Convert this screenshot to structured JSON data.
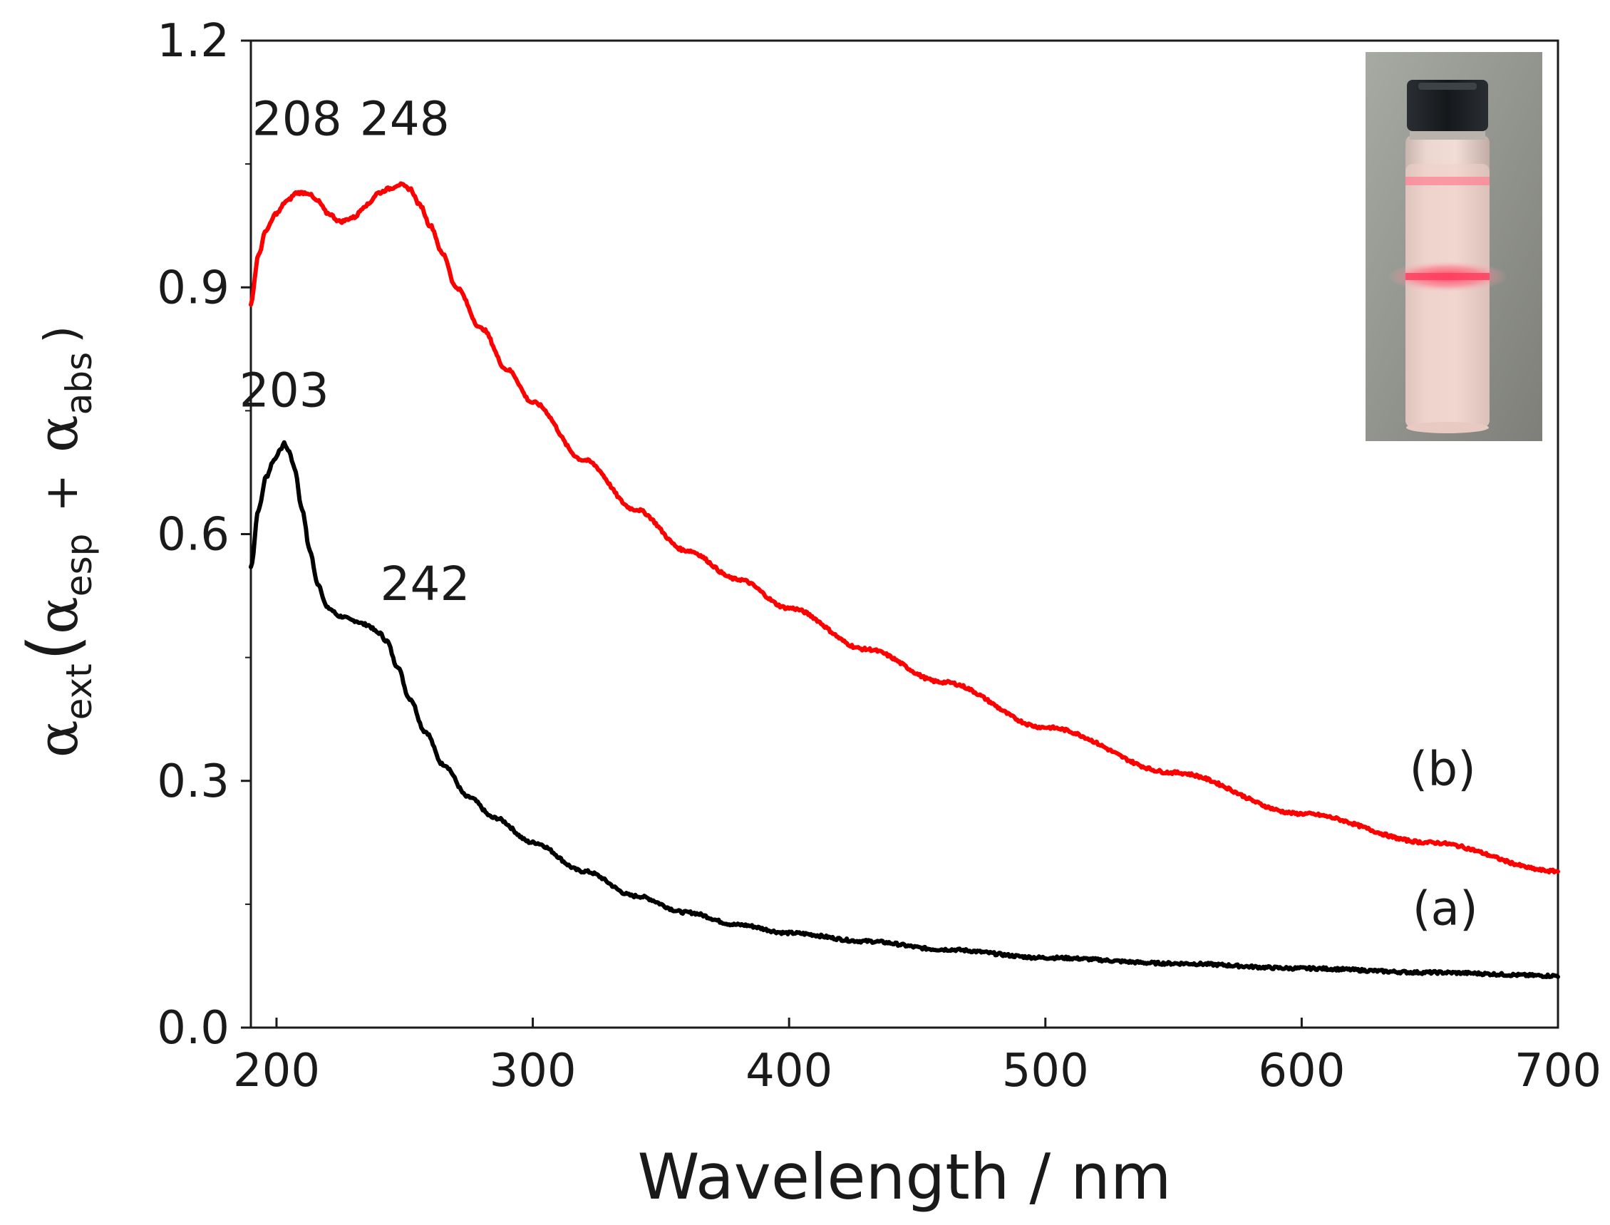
{
  "chart_data": {
    "type": "line",
    "title": "",
    "xlabel": "Wavelength / nm",
    "ylabel": {
      "symbol": "α",
      "ext_sub": "ext",
      "esp_sub": "esp",
      "abs_sub": "abs",
      "plus": "+",
      "open_paren": "(",
      "close_paren": ")"
    },
    "xlim": [
      190,
      700
    ],
    "ylim": [
      0.0,
      1.2
    ],
    "xticks": [
      200,
      300,
      400,
      500,
      600,
      700
    ],
    "xtick_labels": [
      "200",
      "300",
      "400",
      "500",
      "600",
      "700"
    ],
    "yticks": [
      0.0,
      0.3,
      0.6,
      0.9,
      1.2
    ],
    "ytick_labels": [
      "0.0",
      "0.3",
      "0.6",
      "0.9",
      "1.2"
    ],
    "grid": false,
    "series": [
      {
        "name": "(a)",
        "color": "#000000",
        "x": [
          190,
          193,
          196,
          199,
          201,
          203,
          205,
          207,
          210,
          213,
          216,
          220,
          225,
          230,
          235,
          240,
          243,
          247,
          252,
          258,
          265,
          275,
          285,
          300,
          320,
          340,
          360,
          380,
          400,
          430,
          460,
          500,
          550,
          600,
          650,
          700
        ],
        "y": [
          0.56,
          0.63,
          0.67,
          0.69,
          0.7,
          0.71,
          0.7,
          0.68,
          0.63,
          0.58,
          0.54,
          0.51,
          0.5,
          0.495,
          0.49,
          0.48,
          0.47,
          0.44,
          0.4,
          0.36,
          0.32,
          0.28,
          0.255,
          0.225,
          0.19,
          0.16,
          0.14,
          0.125,
          0.115,
          0.105,
          0.095,
          0.085,
          0.078,
          0.072,
          0.067,
          0.063
        ]
      },
      {
        "name": "(b)",
        "color": "#ff0000",
        "x": [
          190,
          193,
          196,
          200,
          204,
          208,
          212,
          216,
          220,
          225,
          230,
          235,
          240,
          244,
          248,
          252,
          256,
          260,
          265,
          270,
          280,
          290,
          300,
          320,
          340,
          360,
          380,
          400,
          430,
          460,
          500,
          550,
          600,
          650,
          700
        ],
        "y": [
          0.88,
          0.94,
          0.97,
          0.99,
          1.005,
          1.015,
          1.015,
          1.005,
          0.99,
          0.98,
          0.985,
          1.0,
          1.015,
          1.02,
          1.025,
          1.02,
          1.0,
          0.975,
          0.94,
          0.9,
          0.85,
          0.8,
          0.76,
          0.69,
          0.63,
          0.58,
          0.545,
          0.51,
          0.46,
          0.42,
          0.365,
          0.31,
          0.26,
          0.225,
          0.19
        ]
      }
    ],
    "annotations": [
      {
        "text": "208",
        "x": 208,
        "y": 1.085
      },
      {
        "text": "248",
        "x": 250,
        "y": 1.085
      },
      {
        "text": "203",
        "x": 203,
        "y": 0.755
      },
      {
        "text": "242",
        "x": 258,
        "y": 0.52
      },
      {
        "text": "(b)",
        "x": 655,
        "y": 0.295
      },
      {
        "text": "(a)",
        "x": 656,
        "y": 0.125
      }
    ],
    "inset": {
      "description_name": "vial-photo",
      "background_color": "#8d8f87",
      "cap_color": "#1c1f22",
      "liquid_color": "#e7c8c2",
      "laser_color": "#ff4f66"
    }
  }
}
